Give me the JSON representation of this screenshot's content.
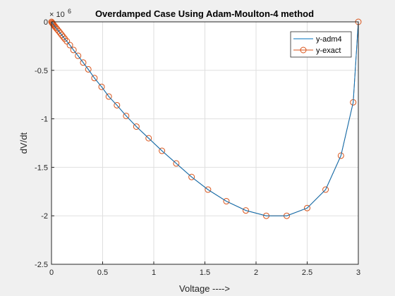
{
  "chart_data": {
    "type": "line",
    "title": "Overdamped Case Using Adam-Moulton-4 method",
    "xlabel": "Voltage ---->",
    "ylabel": "dV/dt",
    "y_exponent_label": "× 10",
    "y_exponent_power": "6",
    "xlim": [
      0,
      3
    ],
    "ylim": [
      -2.5,
      0
    ],
    "x_ticks": [
      "0",
      "0.5",
      "1",
      "1.5",
      "2",
      "2.5",
      "3"
    ],
    "y_ticks": [
      "0",
      "-0.5",
      "-1",
      "-1.5",
      "-2",
      "-2.5"
    ],
    "grid": true,
    "legend_position": "top-right",
    "colors": {
      "adm4": "#0072BD",
      "exact": "#D95319",
      "background": "#f0f0f0",
      "axes_bg": "#ffffff",
      "grid": "#dfdfdf",
      "axis": "#262626"
    },
    "series": [
      {
        "name": "y-adm4",
        "marker": "none",
        "x": [
          0,
          0.005,
          0.01,
          0.015,
          0.02,
          0.027,
          0.035,
          0.045,
          0.056,
          0.07,
          0.085,
          0.1,
          0.115,
          0.13,
          0.15,
          0.18,
          0.215,
          0.26,
          0.31,
          0.36,
          0.42,
          0.49,
          0.56,
          0.64,
          0.73,
          0.83,
          0.95,
          1.08,
          1.22,
          1.37,
          1.53,
          1.71,
          1.9,
          2.1,
          2.3,
          2.5,
          2.68,
          2.83,
          2.95,
          3.0
        ],
        "y": [
          0,
          -0.008,
          -0.015,
          -0.022,
          -0.03,
          -0.04,
          -0.05,
          -0.063,
          -0.077,
          -0.095,
          -0.115,
          -0.135,
          -0.155,
          -0.175,
          -0.2,
          -0.24,
          -0.29,
          -0.35,
          -0.42,
          -0.49,
          -0.58,
          -0.67,
          -0.77,
          -0.86,
          -0.97,
          -1.08,
          -1.2,
          -1.33,
          -1.46,
          -1.6,
          -1.73,
          -1.85,
          -1.945,
          -2.0,
          -2.0,
          -1.92,
          -1.73,
          -1.38,
          -0.83,
          0
        ]
      },
      {
        "name": "y-exact",
        "marker": "o",
        "x": [
          0,
          0.005,
          0.01,
          0.015,
          0.02,
          0.027,
          0.035,
          0.045,
          0.056,
          0.07,
          0.085,
          0.1,
          0.115,
          0.13,
          0.15,
          0.18,
          0.215,
          0.26,
          0.31,
          0.36,
          0.42,
          0.49,
          0.56,
          0.64,
          0.73,
          0.83,
          0.95,
          1.08,
          1.22,
          1.37,
          1.53,
          1.71,
          1.9,
          2.1,
          2.3,
          2.5,
          2.68,
          2.83,
          2.95,
          3.0
        ],
        "y": [
          0,
          -0.008,
          -0.015,
          -0.022,
          -0.03,
          -0.04,
          -0.05,
          -0.063,
          -0.077,
          -0.095,
          -0.115,
          -0.135,
          -0.155,
          -0.175,
          -0.2,
          -0.24,
          -0.29,
          -0.35,
          -0.42,
          -0.49,
          -0.58,
          -0.67,
          -0.77,
          -0.86,
          -0.97,
          -1.08,
          -1.2,
          -1.33,
          -1.46,
          -1.6,
          -1.73,
          -1.85,
          -1.945,
          -2.0,
          -2.0,
          -1.92,
          -1.73,
          -1.38,
          -0.83,
          0
        ]
      }
    ]
  }
}
